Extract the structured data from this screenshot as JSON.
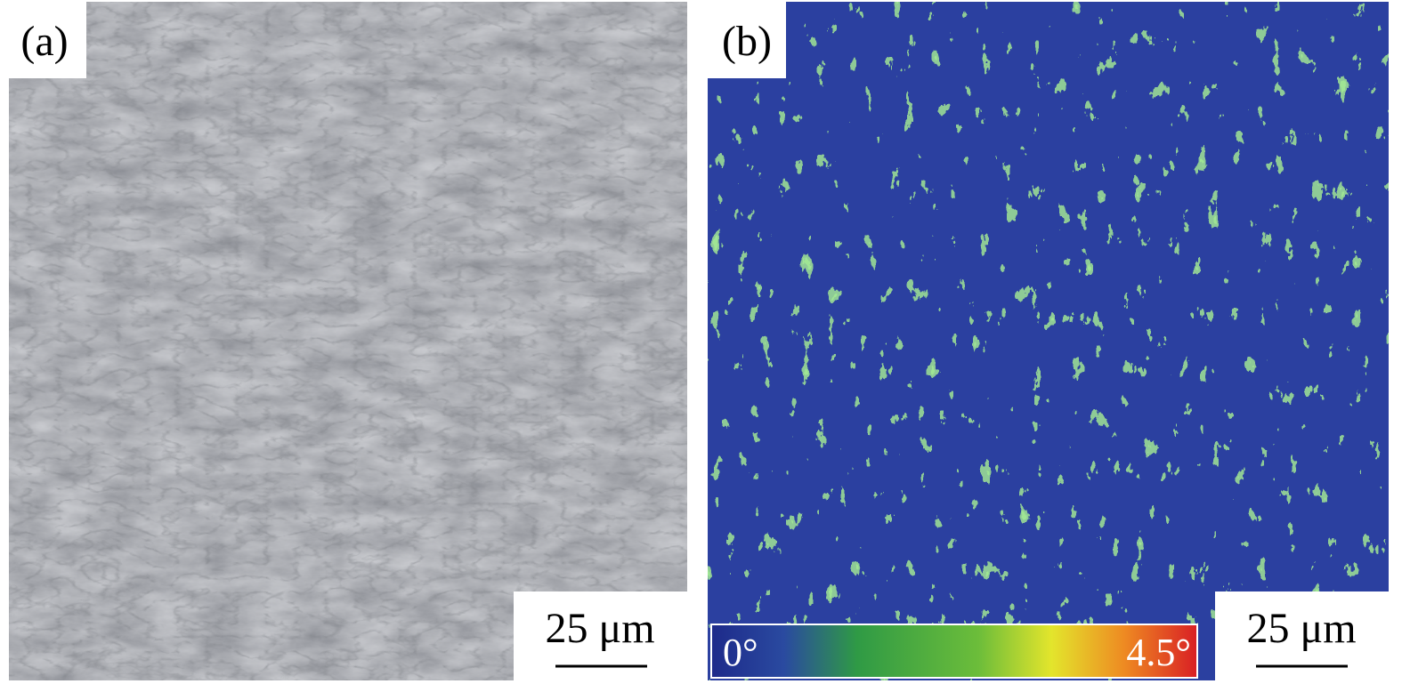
{
  "panels": [
    {
      "label": "(a)",
      "scale_bar": "25 μm"
    },
    {
      "label": "(b)",
      "scale_bar": "25 μm",
      "colorbar": {
        "min_label": "0°",
        "max_label": "4.5°"
      }
    }
  ]
}
